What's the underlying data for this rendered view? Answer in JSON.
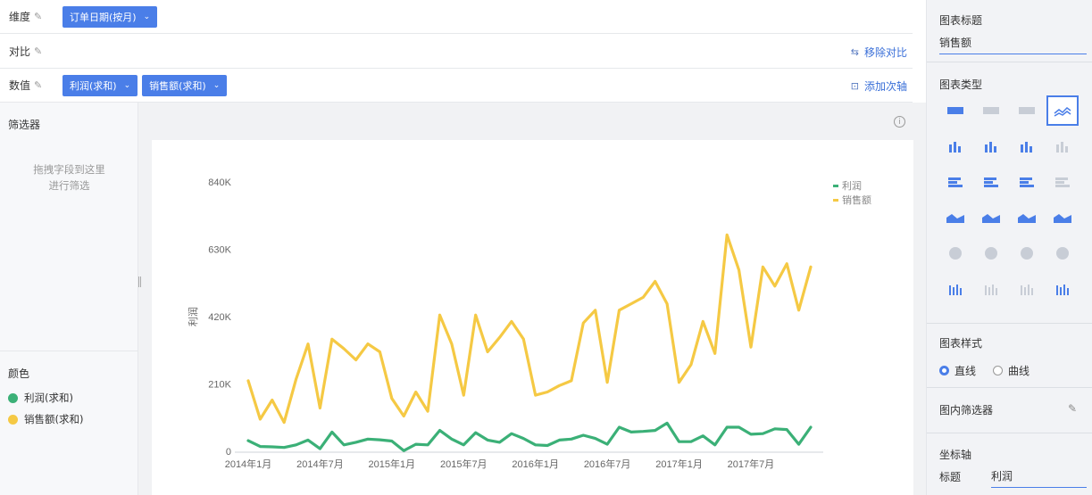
{
  "toolbar": {
    "dimension_label": "维度",
    "compare_label": "对比",
    "value_label": "数值",
    "dimension_pill": "订单日期(按月)",
    "value_pills": [
      "利润(求和)",
      "销售额(求和)"
    ],
    "remove_compare": "移除对比",
    "add_secondary_axis": "添加次轴"
  },
  "filter_panel": {
    "title": "筛选器",
    "hint_line1": "拖拽字段到这里",
    "hint_line2": "进行筛选"
  },
  "color_panel": {
    "title": "颜色",
    "items": [
      {
        "label": "利润(求和)",
        "color": "#3bb077"
      },
      {
        "label": "销售额(求和)",
        "color": "#f5c944"
      }
    ]
  },
  "right_panel": {
    "chart_title_label": "图表标题",
    "chart_title_value": "销售额",
    "chart_type_label": "图表类型",
    "chart_style_label": "图表样式",
    "style_options": [
      {
        "label": "直线",
        "selected": true
      },
      {
        "label": "曲线",
        "selected": false
      }
    ],
    "inner_filter_label": "图内筛选器",
    "axis_label": "坐标轴",
    "axis_title_label": "标题",
    "axis_title_value": "利润"
  },
  "icons": {
    "edit": "pencil-icon",
    "info": "info-icon",
    "remove_compare": "remove-compare-icon",
    "add_axis": "add-axis-icon"
  },
  "chart_data": {
    "type": "line",
    "ylabel": "利润",
    "ylim": [
      0,
      840000
    ],
    "yticks": [
      "0",
      "210K",
      "420K",
      "630K",
      "840K"
    ],
    "xtick_labels": [
      "2014年1月",
      "2014年7月",
      "2015年1月",
      "2015年7月",
      "2016年1月",
      "2016年7月",
      "2017年1月",
      "2017年7月"
    ],
    "legend_position": "top-right",
    "grid": false,
    "x": [
      "2014-01",
      "2014-02",
      "2014-03",
      "2014-04",
      "2014-05",
      "2014-06",
      "2014-07",
      "2014-08",
      "2014-09",
      "2014-10",
      "2014-11",
      "2014-12",
      "2015-01",
      "2015-02",
      "2015-03",
      "2015-04",
      "2015-05",
      "2015-06",
      "2015-07",
      "2015-08",
      "2015-09",
      "2015-10",
      "2015-11",
      "2015-12",
      "2016-01",
      "2016-02",
      "2016-03",
      "2016-04",
      "2016-05",
      "2016-06",
      "2016-07",
      "2016-08",
      "2016-09",
      "2016-10",
      "2016-11",
      "2016-12",
      "2017-01",
      "2017-02",
      "2017-03",
      "2017-04",
      "2017-05",
      "2017-06",
      "2017-07",
      "2017-08",
      "2017-09",
      "2017-10",
      "2017-11",
      "2017-12"
    ],
    "series": [
      {
        "name": "利润",
        "color": "#3bb077",
        "values": [
          33000,
          15000,
          14000,
          12000,
          20000,
          35000,
          8000,
          60000,
          20000,
          28000,
          38000,
          36000,
          32000,
          2000,
          22000,
          20000,
          65000,
          38000,
          20000,
          58000,
          35000,
          28000,
          55000,
          40000,
          20000,
          18000,
          35000,
          38000,
          50000,
          40000,
          22000,
          75000,
          60000,
          62000,
          65000,
          88000,
          30000,
          30000,
          48000,
          20000,
          75000,
          75000,
          53000,
          55000,
          70000,
          68000,
          22000,
          75000
        ]
      },
      {
        "name": "销售额",
        "color": "#f5c944",
        "values": [
          220000,
          100000,
          160000,
          90000,
          225000,
          335000,
          135000,
          350000,
          320000,
          285000,
          335000,
          310000,
          165000,
          110000,
          185000,
          125000,
          425000,
          335000,
          175000,
          425000,
          310000,
          355000,
          405000,
          350000,
          175000,
          185000,
          205000,
          220000,
          400000,
          440000,
          215000,
          440000,
          460000,
          480000,
          530000,
          460000,
          215000,
          270000,
          405000,
          305000,
          675000,
          565000,
          325000,
          575000,
          515000,
          585000,
          440000,
          575000
        ]
      }
    ]
  }
}
